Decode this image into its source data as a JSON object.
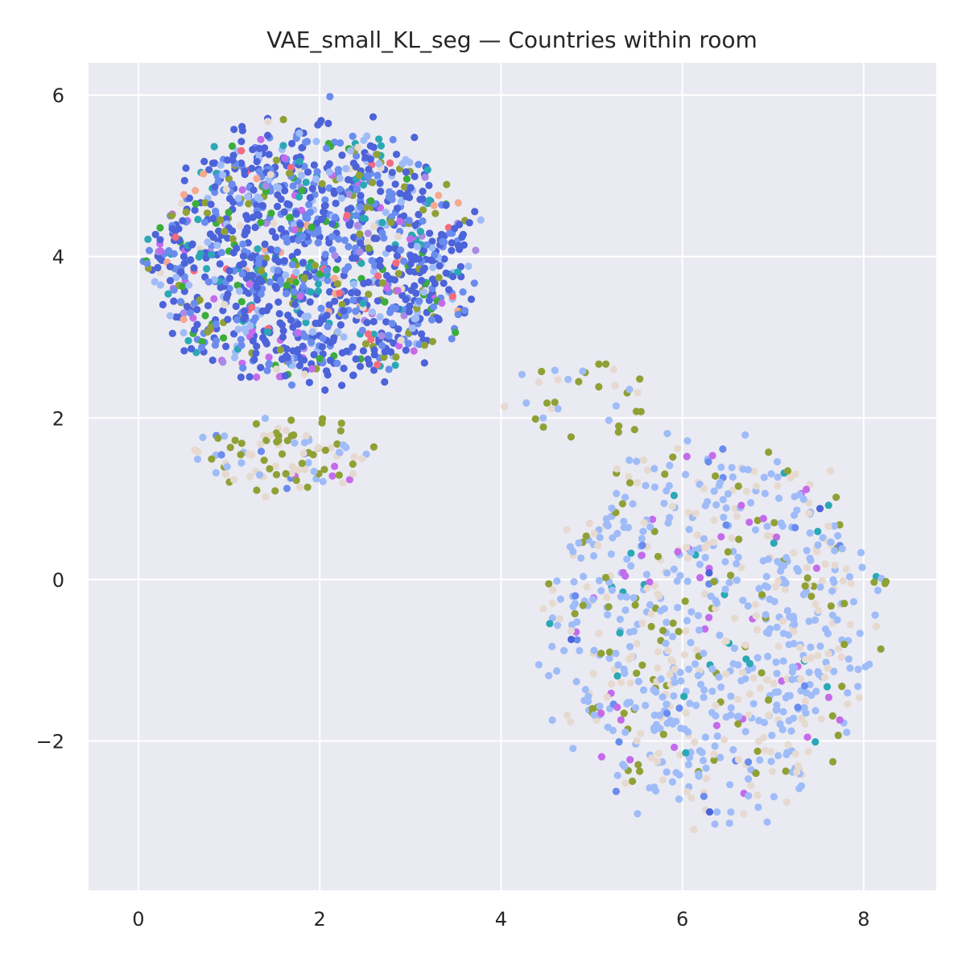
{
  "chart_data": {
    "type": "scatter",
    "title": "VAE_small_KL_seg — Countries within room",
    "xlabel": "",
    "ylabel": "",
    "xlim": [
      -0.55,
      8.8
    ],
    "ylim": [
      -3.85,
      6.4
    ],
    "xticks": [
      0,
      2,
      4,
      6,
      8
    ],
    "yticks": [
      -2,
      0,
      2,
      4,
      6
    ],
    "xtick_labels": [
      "0",
      "2",
      "4",
      "6",
      "8"
    ],
    "ytick_labels": [
      "−2",
      "0",
      "2",
      "4",
      "6"
    ],
    "grid": true,
    "legend": "none",
    "background": "#eaeaf2",
    "grid_color": "#ffffff",
    "palette": {
      "royal_blue": "#4c63d9",
      "cornflower_blue": "#6a8cee",
      "light_blue": "#9fbcf8",
      "beige": "#e6d9cf",
      "olive": "#8fa135",
      "green": "#3aad3a",
      "teal": "#2aa8b5",
      "violet": "#c46bea",
      "pink_red": "#f36b7f",
      "peach": "#f5a98f",
      "lavender": "#a98be6"
    },
    "clusters": [
      {
        "name": "",
        "description_visible": false,
        "center": [
          1.9,
          4.0
        ],
        "radii": [
          1.75,
          1.55
        ],
        "count": 1350,
        "color_mix": {
          "royal_blue": 0.42,
          "cornflower_blue": 0.22,
          "light_blue": 0.08,
          "olive": 0.06,
          "green": 0.05,
          "teal": 0.05,
          "violet": 0.04,
          "beige": 0.03,
          "pink_red": 0.02,
          "peach": 0.015,
          "lavender": 0.015
        }
      },
      {
        "name": "",
        "center": [
          1.6,
          1.55
        ],
        "radii": [
          1.0,
          0.45
        ],
        "count": 110,
        "color_mix": {
          "olive": 0.45,
          "beige": 0.3,
          "light_blue": 0.15,
          "violet": 0.05,
          "cornflower_blue": 0.05
        }
      },
      {
        "name": "",
        "center": [
          6.3,
          -0.6
        ],
        "radii": [
          1.75,
          2.3
        ],
        "count": 820,
        "color_mix": {
          "light_blue": 0.55,
          "beige": 0.25,
          "olive": 0.1,
          "violet": 0.05,
          "teal": 0.02,
          "cornflower_blue": 0.02,
          "royal_blue": 0.01
        }
      },
      {
        "name": "",
        "center": [
          4.8,
          2.2
        ],
        "radii": [
          0.8,
          0.6
        ],
        "count": 35,
        "color_mix": {
          "light_blue": 0.4,
          "beige": 0.3,
          "olive": 0.3
        }
      },
      {
        "name": "",
        "center": [
          8.15,
          -0.05
        ],
        "radii": [
          0.12,
          0.1
        ],
        "count": 6,
        "color_mix": {
          "teal": 0.4,
          "light_blue": 0.3,
          "olive": 0.3
        }
      }
    ],
    "random_seed": 7
  }
}
